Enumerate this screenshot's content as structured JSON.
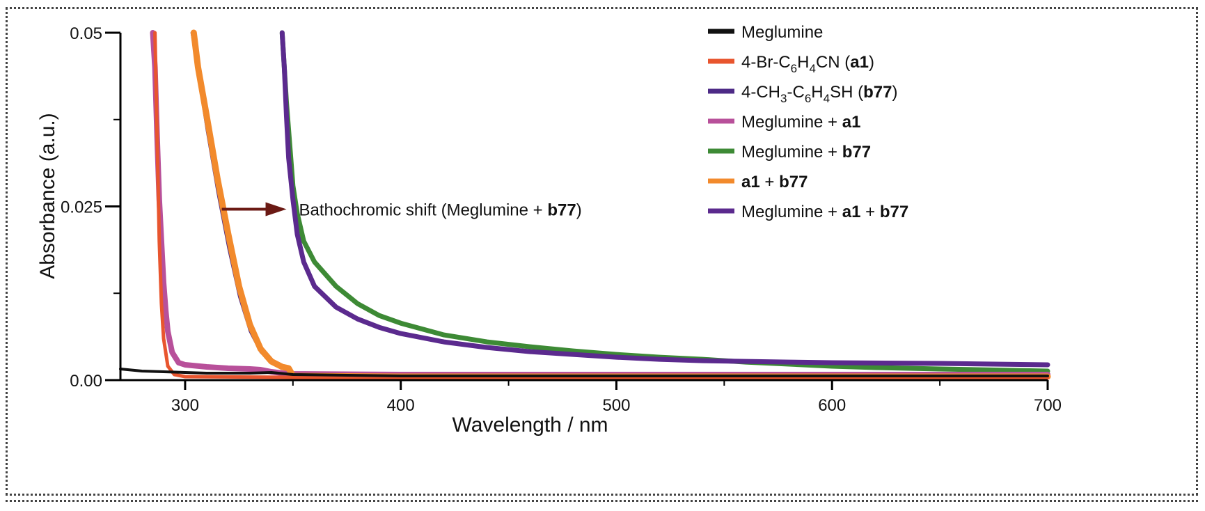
{
  "chart_data": {
    "type": "line",
    "xlabel": "Wavelength / nm",
    "ylabel": "Absorbance (a.u.)",
    "xlim": [
      270,
      700
    ],
    "ylim": [
      0,
      0.05
    ],
    "xticks": [
      {
        "value": 300,
        "label": "300"
      },
      {
        "value": 400,
        "label": "400"
      },
      {
        "value": 500,
        "label": "500"
      },
      {
        "value": 600,
        "label": "600"
      },
      {
        "value": 700,
        "label": "700"
      }
    ],
    "yticks": [
      {
        "value": 0,
        "label": "0.00"
      },
      {
        "value": 0.025,
        "label": "0.025"
      },
      {
        "value": 0.05,
        "label": "0.05"
      }
    ],
    "annotation": {
      "parts": [
        {
          "text": "Bathochromic shift (Meglumine + ",
          "bold": false
        },
        {
          "text": "b77",
          "bold": true
        },
        {
          "text": ")",
          "bold": false
        }
      ],
      "arrow_from": [
        317,
        0.0246
      ],
      "arrow_to": [
        347,
        0.0246
      ],
      "arrow_color": "#6b1a14"
    },
    "series": [
      {
        "key": "meglumine",
        "color": "#111111",
        "width": 4,
        "legend": [
          {
            "text": "Meglumine",
            "bold": false
          }
        ],
        "points": [
          [
            270,
            0.0016
          ],
          [
            280,
            0.0013
          ],
          [
            290,
            0.0012
          ],
          [
            300,
            0.0011
          ],
          [
            310,
            0.001
          ],
          [
            320,
            0.001
          ],
          [
            330,
            0.001
          ],
          [
            340,
            0.0011
          ],
          [
            350,
            0.0008
          ],
          [
            400,
            0.0006
          ],
          [
            500,
            0.0006
          ],
          [
            600,
            0.0006
          ],
          [
            700,
            0.0006
          ]
        ]
      },
      {
        "key": "a1",
        "color": "#e8552e",
        "width": 5,
        "legend": [
          {
            "text": "4-Br-C",
            "bold": false
          },
          {
            "text": "6",
            "bold": false,
            "sub": true
          },
          {
            "text": "H",
            "bold": false
          },
          {
            "text": "4",
            "bold": false,
            "sub": true
          },
          {
            "text": "CN (",
            "bold": false
          },
          {
            "text": "a1",
            "bold": true
          },
          {
            "text": ")",
            "bold": false
          }
        ],
        "points": [
          [
            286,
            0.05
          ],
          [
            287,
            0.035
          ],
          [
            288,
            0.02
          ],
          [
            289,
            0.011
          ],
          [
            290,
            0.006
          ],
          [
            292,
            0.002
          ],
          [
            295,
            0.0008
          ],
          [
            300,
            0.0005
          ],
          [
            350,
            0.0004
          ],
          [
            400,
            0.0003
          ],
          [
            500,
            0.0003
          ],
          [
            600,
            0.0003
          ],
          [
            700,
            0.0003
          ]
        ]
      },
      {
        "key": "b77",
        "color": "#4d2a86",
        "width": 3,
        "legend": [
          {
            "text": "4-CH",
            "bold": false
          },
          {
            "text": "3",
            "bold": false,
            "sub": true
          },
          {
            "text": "-C",
            "bold": false
          },
          {
            "text": "6",
            "bold": false,
            "sub": true
          },
          {
            "text": "H",
            "bold": false
          },
          {
            "text": "4",
            "bold": false,
            "sub": true
          },
          {
            "text": "SH (",
            "bold": false
          },
          {
            "text": "b77",
            "bold": true
          },
          {
            "text": ")",
            "bold": false
          }
        ],
        "points": [
          [
            303,
            0.05
          ],
          [
            306,
            0.044
          ],
          [
            310,
            0.036
          ],
          [
            315,
            0.027
          ],
          [
            320,
            0.019
          ],
          [
            325,
            0.012
          ],
          [
            330,
            0.007
          ],
          [
            335,
            0.004
          ],
          [
            340,
            0.0025
          ],
          [
            345,
            0.0017
          ],
          [
            348,
            0.0015
          ],
          [
            350,
            0.0008
          ],
          [
            400,
            0.0006
          ],
          [
            500,
            0.0006
          ],
          [
            600,
            0.0006
          ],
          [
            700,
            0.0006
          ]
        ]
      },
      {
        "key": "meglumine_a1",
        "color": "#b8509a",
        "width": 8,
        "legend": [
          {
            "text": "Meglumine + ",
            "bold": false
          },
          {
            "text": "a1",
            "bold": true
          }
        ],
        "points": [
          [
            285,
            0.05
          ],
          [
            286,
            0.045
          ],
          [
            287,
            0.035
          ],
          [
            288,
            0.026
          ],
          [
            289,
            0.02
          ],
          [
            290,
            0.014
          ],
          [
            291,
            0.01
          ],
          [
            292,
            0.007
          ],
          [
            294,
            0.004
          ],
          [
            297,
            0.0025
          ],
          [
            300,
            0.0022
          ],
          [
            310,
            0.0019
          ],
          [
            320,
            0.0017
          ],
          [
            330,
            0.0016
          ],
          [
            335,
            0.0015
          ],
          [
            340,
            0.0012
          ],
          [
            345,
            0.001
          ],
          [
            350,
            0.0009
          ],
          [
            400,
            0.0008
          ],
          [
            500,
            0.0008
          ],
          [
            600,
            0.0008
          ],
          [
            700,
            0.0008
          ]
        ]
      },
      {
        "key": "meglumine_b77",
        "color": "#3d8a35",
        "width": 7,
        "legend": [
          {
            "text": "Meglumine + ",
            "bold": false
          },
          {
            "text": "b77",
            "bold": true
          }
        ],
        "points": [
          [
            345,
            0.05
          ],
          [
            347,
            0.04
          ],
          [
            349,
            0.032
          ],
          [
            350,
            0.028
          ],
          [
            352,
            0.024
          ],
          [
            355,
            0.02
          ],
          [
            360,
            0.017
          ],
          [
            370,
            0.0135
          ],
          [
            380,
            0.011
          ],
          [
            390,
            0.0093
          ],
          [
            400,
            0.0082
          ],
          [
            420,
            0.0065
          ],
          [
            440,
            0.0055
          ],
          [
            460,
            0.0048
          ],
          [
            480,
            0.0042
          ],
          [
            500,
            0.0037
          ],
          [
            520,
            0.0033
          ],
          [
            540,
            0.003
          ],
          [
            560,
            0.0026
          ],
          [
            580,
            0.0023
          ],
          [
            600,
            0.002
          ],
          [
            620,
            0.0018
          ],
          [
            650,
            0.0016
          ],
          [
            700,
            0.0013
          ]
        ]
      },
      {
        "key": "a1_b77",
        "color": "#f28a2c",
        "width": 9,
        "legend": [
          {
            "text": "a1",
            "bold": true
          },
          {
            "text": " + ",
            "bold": false
          },
          {
            "text": "b77",
            "bold": true
          }
        ],
        "points": [
          [
            304,
            0.05
          ],
          [
            306,
            0.045
          ],
          [
            310,
            0.038
          ],
          [
            315,
            0.029
          ],
          [
            320,
            0.021
          ],
          [
            325,
            0.0135
          ],
          [
            330,
            0.008
          ],
          [
            335,
            0.0045
          ],
          [
            340,
            0.0027
          ],
          [
            345,
            0.0019
          ],
          [
            348,
            0.0017
          ],
          [
            350,
            0.0006
          ],
          [
            400,
            0.0005
          ],
          [
            500,
            0.0005
          ],
          [
            600,
            0.0005
          ],
          [
            700,
            0.0005
          ]
        ]
      },
      {
        "key": "meglumine_a1_b77",
        "color": "#5b2a8e",
        "width": 7,
        "legend": [
          {
            "text": "Meglumine + ",
            "bold": false
          },
          {
            "text": "a1",
            "bold": true
          },
          {
            "text": " + ",
            "bold": false
          },
          {
            "text": "b77",
            "bold": true
          }
        ],
        "points": [
          [
            345,
            0.05
          ],
          [
            346,
            0.045
          ],
          [
            347,
            0.038
          ],
          [
            348,
            0.032
          ],
          [
            350,
            0.026
          ],
          [
            352,
            0.021
          ],
          [
            355,
            0.017
          ],
          [
            360,
            0.0135
          ],
          [
            370,
            0.0105
          ],
          [
            380,
            0.0088
          ],
          [
            390,
            0.0076
          ],
          [
            400,
            0.0067
          ],
          [
            420,
            0.0055
          ],
          [
            440,
            0.0047
          ],
          [
            460,
            0.0041
          ],
          [
            480,
            0.0037
          ],
          [
            500,
            0.0033
          ],
          [
            520,
            0.003
          ],
          [
            540,
            0.0028
          ],
          [
            560,
            0.0027
          ],
          [
            580,
            0.0026
          ],
          [
            600,
            0.0025
          ],
          [
            650,
            0.0024
          ],
          [
            700,
            0.0022
          ]
        ]
      }
    ]
  }
}
